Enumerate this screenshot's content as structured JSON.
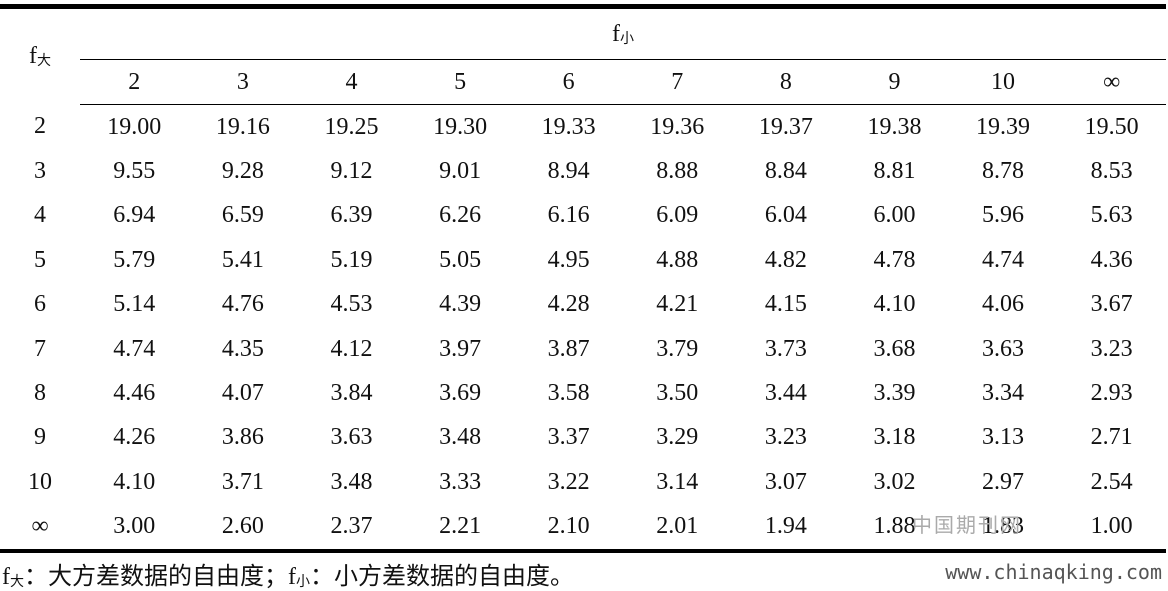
{
  "table": {
    "row_header": {
      "main": "f",
      "sub": "大"
    },
    "col_header": {
      "main": "f",
      "sub": "小"
    },
    "columns": [
      "2",
      "3",
      "4",
      "5",
      "6",
      "7",
      "8",
      "9",
      "10",
      "∞"
    ],
    "rows": [
      [
        "2",
        "19.00",
        "19.16",
        "19.25",
        "19.30",
        "19.33",
        "19.36",
        "19.37",
        "19.38",
        "19.39",
        "19.50"
      ],
      [
        "3",
        "9.55",
        "9.28",
        "9.12",
        "9.01",
        "8.94",
        "8.88",
        "8.84",
        "8.81",
        "8.78",
        "8.53"
      ],
      [
        "4",
        "6.94",
        "6.59",
        "6.39",
        "6.26",
        "6.16",
        "6.09",
        "6.04",
        "6.00",
        "5.96",
        "5.63"
      ],
      [
        "5",
        "5.79",
        "5.41",
        "5.19",
        "5.05",
        "4.95",
        "4.88",
        "4.82",
        "4.78",
        "4.74",
        "4.36"
      ],
      [
        "6",
        "5.14",
        "4.76",
        "4.53",
        "4.39",
        "4.28",
        "4.21",
        "4.15",
        "4.10",
        "4.06",
        "3.67"
      ],
      [
        "7",
        "4.74",
        "4.35",
        "4.12",
        "3.97",
        "3.87",
        "3.79",
        "3.73",
        "3.68",
        "3.63",
        "3.23"
      ],
      [
        "8",
        "4.46",
        "4.07",
        "3.84",
        "3.69",
        "3.58",
        "3.50",
        "3.44",
        "3.39",
        "3.34",
        "2.93"
      ],
      [
        "9",
        "4.26",
        "3.86",
        "3.63",
        "3.48",
        "3.37",
        "3.29",
        "3.23",
        "3.18",
        "3.13",
        "2.71"
      ],
      [
        "10",
        "4.10",
        "3.71",
        "3.48",
        "3.33",
        "3.22",
        "3.14",
        "3.07",
        "3.02",
        "2.97",
        "2.54"
      ],
      [
        "∞",
        "3.00",
        "2.60",
        "2.37",
        "2.21",
        "2.10",
        "2.01",
        "1.94",
        "1.88",
        "1.83",
        "1.00"
      ]
    ]
  },
  "footnote": [
    "f",
    "大",
    "：大方差数据的自由度；",
    "f",
    "小",
    "：小方差数据的自由度。"
  ],
  "watermark_logo": "中国期刊网",
  "watermark_url": "www.chinaqking.com"
}
